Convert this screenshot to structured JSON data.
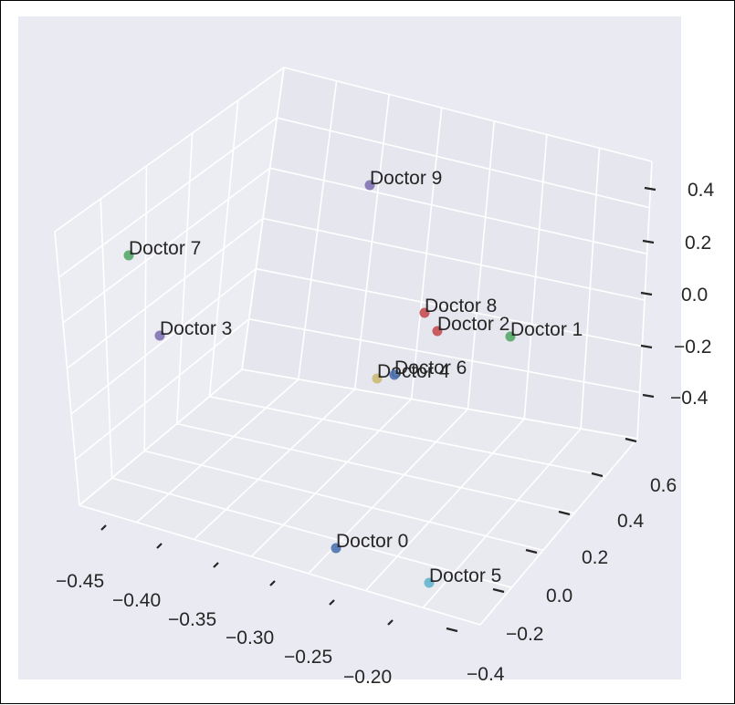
{
  "chart_data": {
    "type": "scatter3d",
    "title": "",
    "xlabel": "",
    "ylabel": "",
    "zlabel": "",
    "xlim": [
      -0.47,
      -0.18
    ],
    "ylim": [
      -0.45,
      0.7
    ],
    "zlim": [
      -0.5,
      0.5
    ],
    "grid": true,
    "x_ticks": [
      "−0.45",
      "−0.40",
      "−0.35",
      "−0.30",
      "−0.25",
      "−0.20"
    ],
    "y_ticks": [
      "−0.4",
      "−0.2",
      "0.0",
      "0.2",
      "0.4",
      "0.6"
    ],
    "z_ticks": [
      "−0.4",
      "−0.2",
      "0.0",
      "0.2",
      "0.4"
    ],
    "points": [
      {
        "label": "Doctor 0",
        "x": -0.27,
        "y": -0.4,
        "z": -0.42,
        "color": "#4c72b0"
      },
      {
        "label": "Doctor 1",
        "x": -0.21,
        "y": 0.45,
        "z": -0.02,
        "color": "#55a868"
      },
      {
        "label": "Doctor 2",
        "x": -0.25,
        "y": 0.4,
        "z": -0.02,
        "color": "#c44e52"
      },
      {
        "label": "Doctor 3",
        "x": -0.43,
        "y": 0.12,
        "z": 0.02,
        "color": "#8172b2"
      },
      {
        "label": "Doctor 4",
        "x": -0.33,
        "y": 0.55,
        "z": -0.2,
        "color": "#ccb974"
      },
      {
        "label": "Doctor 5",
        "x": -0.21,
        "y": -0.4,
        "z": -0.3,
        "color": "#64b5cd"
      },
      {
        "label": "Doctor 6",
        "x": -0.32,
        "y": 0.55,
        "z": -0.18,
        "color": "#4c72b0"
      },
      {
        "label": "Doctor 7",
        "x": -0.45,
        "y": 0.2,
        "z": 0.3,
        "color": "#55a868"
      },
      {
        "label": "Doctor 8",
        "x": -0.27,
        "y": 0.48,
        "z": 0.03,
        "color": "#c44e52"
      },
      {
        "label": "Doctor 9",
        "x": -0.36,
        "y": 0.4,
        "z": 0.35,
        "color": "#8172b2"
      }
    ]
  }
}
